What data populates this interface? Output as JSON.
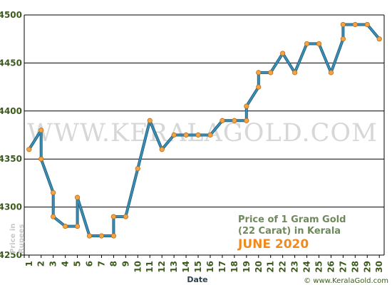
{
  "chart_data": {
    "type": "line",
    "title_line1": "Price of 1 Gram Gold",
    "title_line2": "(22 Carat) in Kerala",
    "subtitle": "JUNE 2020",
    "xlabel": "Date",
    "ylabel_line1": "Price in",
    "ylabel_line2": "Rupees",
    "watermark": "WWW.KERALAGOLD.COM",
    "footer": "© www.KeralaGold.com",
    "ylim": [
      4250,
      4500
    ],
    "xlim": [
      0.6,
      30.4
    ],
    "yticks": [
      4250,
      4300,
      4350,
      4400,
      4450,
      4500
    ],
    "xticks": [
      "1",
      "2",
      "3",
      "4",
      "5",
      "6",
      "7",
      "8",
      "9",
      "10",
      "11",
      "12",
      "13",
      "14",
      "15",
      "16",
      "17",
      "18",
      "19",
      "20",
      "21",
      "22",
      "23",
      "24",
      "25",
      "26",
      "27",
      "28",
      "29",
      "30"
    ],
    "grid": "horizontal",
    "colors": {
      "line": "#3d8fb5",
      "line_dark": "#1f5f7e",
      "marker": "#f5a445",
      "marker_stroke": "#b86a14",
      "grid": "#000000"
    },
    "points": [
      {
        "x": 1,
        "y": 4360
      },
      {
        "x": 2,
        "y": 4380
      },
      {
        "x": 2,
        "y": 4350
      },
      {
        "x": 3,
        "y": 4315
      },
      {
        "x": 3,
        "y": 4290
      },
      {
        "x": 4,
        "y": 4280
      },
      {
        "x": 5,
        "y": 4280
      },
      {
        "x": 5,
        "y": 4310
      },
      {
        "x": 6,
        "y": 4270
      },
      {
        "x": 7,
        "y": 4270
      },
      {
        "x": 8,
        "y": 4270
      },
      {
        "x": 8,
        "y": 4290
      },
      {
        "x": 9,
        "y": 4290
      },
      {
        "x": 10,
        "y": 4340
      },
      {
        "x": 11,
        "y": 4390
      },
      {
        "x": 12,
        "y": 4360
      },
      {
        "x": 13,
        "y": 4375
      },
      {
        "x": 14,
        "y": 4375
      },
      {
        "x": 15,
        "y": 4375
      },
      {
        "x": 16,
        "y": 4375
      },
      {
        "x": 17,
        "y": 4390
      },
      {
        "x": 18,
        "y": 4390
      },
      {
        "x": 19,
        "y": 4390
      },
      {
        "x": 19,
        "y": 4405
      },
      {
        "x": 20,
        "y": 4425
      },
      {
        "x": 20,
        "y": 4440
      },
      {
        "x": 21,
        "y": 4440
      },
      {
        "x": 22,
        "y": 4460
      },
      {
        "x": 23,
        "y": 4440
      },
      {
        "x": 24,
        "y": 4470
      },
      {
        "x": 25,
        "y": 4470
      },
      {
        "x": 26,
        "y": 4440
      },
      {
        "x": 27,
        "y": 4475
      },
      {
        "x": 27,
        "y": 4490
      },
      {
        "x": 28,
        "y": 4490
      },
      {
        "x": 29,
        "y": 4490
      },
      {
        "x": 30,
        "y": 4475
      }
    ]
  }
}
